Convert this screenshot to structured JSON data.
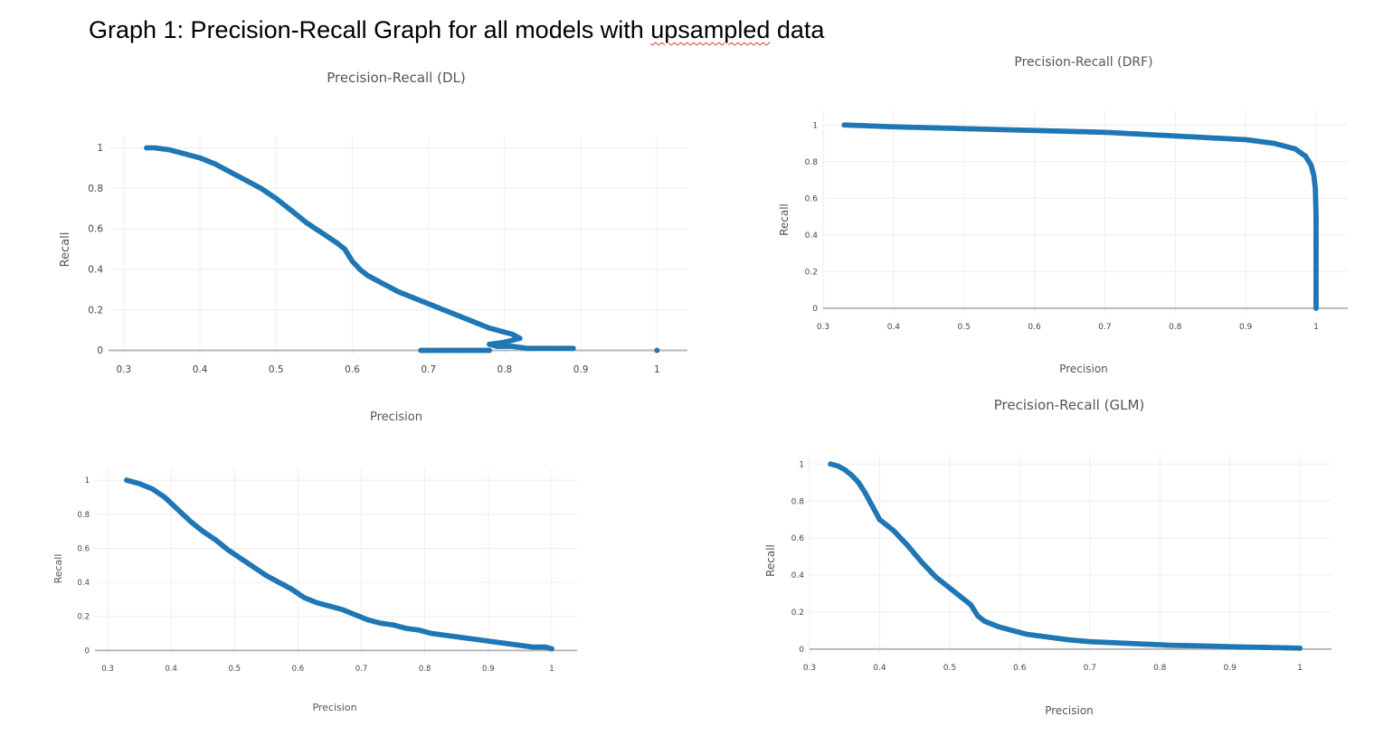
{
  "page": {
    "title_prefix": "Graph 1: Precision-Recall Graph for all models with ",
    "title_misspelled": "upsampled",
    "title_suffix": " data"
  },
  "colors": {
    "marker": "#1f77b4",
    "grid": "#eeeeee",
    "zero_line": "#b8b8b8"
  },
  "chart_data": [
    {
      "type": "scatter",
      "title": "Precision-Recall (DL)",
      "xlabel": "Precision",
      "ylabel": "Recall",
      "xlim": [
        0.28,
        1.04
      ],
      "ylim": [
        -0.02,
        1.06
      ],
      "xticks": [
        0.3,
        0.4,
        0.5,
        0.6,
        0.7,
        0.8,
        0.9,
        1
      ],
      "xtick_labels": [
        "0.3",
        "0.4",
        "0.5",
        "0.6",
        "0.7",
        "0.8",
        "0.9",
        "1"
      ],
      "yticks": [
        0,
        0.2,
        0.4,
        0.6,
        0.8,
        1
      ],
      "ytick_labels": [
        "0",
        "0.2",
        "0.4",
        "0.6",
        "0.8",
        "1"
      ],
      "x": [
        0.33,
        0.34,
        0.36,
        0.38,
        0.4,
        0.42,
        0.44,
        0.46,
        0.48,
        0.5,
        0.52,
        0.54,
        0.56,
        0.58,
        0.59,
        0.6,
        0.61,
        0.62,
        0.64,
        0.66,
        0.68,
        0.7,
        0.72,
        0.74,
        0.76,
        0.78,
        0.8,
        0.81,
        0.82,
        0.8,
        0.78,
        0.79,
        0.81,
        0.83,
        0.85,
        0.87,
        0.89,
        0.69,
        0.715,
        0.78,
        1.0
      ],
      "y": [
        1.0,
        1.0,
        0.99,
        0.97,
        0.95,
        0.92,
        0.88,
        0.84,
        0.8,
        0.75,
        0.69,
        0.63,
        0.58,
        0.53,
        0.5,
        0.44,
        0.4,
        0.37,
        0.33,
        0.29,
        0.26,
        0.23,
        0.2,
        0.17,
        0.14,
        0.11,
        0.09,
        0.08,
        0.06,
        0.04,
        0.03,
        0.02,
        0.02,
        0.01,
        0.01,
        0.01,
        0.01,
        0.0,
        0.0,
        0.0,
        0.0
      ],
      "breaks": [
        37
      ]
    },
    {
      "type": "scatter",
      "title": "Precision-Recall (DRF)",
      "xlabel": "Precision",
      "ylabel": "Recall",
      "xlim": [
        0.3,
        1.045
      ],
      "ylim": [
        -0.03,
        1.08
      ],
      "xticks": [
        0.3,
        0.4,
        0.5,
        0.6,
        0.7,
        0.8,
        0.9,
        1
      ],
      "xtick_labels": [
        "0.3",
        "0.4",
        "0.5",
        "0.6",
        "0.7",
        "0.8",
        "0.9",
        "1"
      ],
      "yticks": [
        0,
        0.2,
        0.4,
        0.6,
        0.8,
        1
      ],
      "ytick_labels": [
        "0",
        "0.2",
        "0.4",
        "0.6",
        "0.8",
        "1"
      ],
      "x": [
        0.33,
        0.4,
        0.5,
        0.6,
        0.7,
        0.8,
        0.9,
        0.94,
        0.97,
        0.985,
        0.993,
        0.997,
        0.999,
        1.0,
        1.0,
        1.0,
        1.0
      ],
      "y": [
        1.0,
        0.99,
        0.98,
        0.97,
        0.96,
        0.94,
        0.92,
        0.9,
        0.87,
        0.83,
        0.78,
        0.72,
        0.65,
        0.5,
        0.3,
        0.1,
        0.0
      ],
      "breaks": []
    },
    {
      "type": "scatter",
      "title": "",
      "xlabel": "Precision",
      "ylabel": "Recall",
      "xlim": [
        0.28,
        1.04
      ],
      "ylim": [
        -0.03,
        1.07
      ],
      "xticks": [
        0.3,
        0.4,
        0.5,
        0.6,
        0.7,
        0.8,
        0.9,
        1
      ],
      "xtick_labels": [
        "0.3",
        "0.4",
        "0.5",
        "0.6",
        "0.7",
        "0.8",
        "0.9",
        "1"
      ],
      "yticks": [
        0,
        0.2,
        0.4,
        0.6,
        0.8,
        1
      ],
      "ytick_labels": [
        "0",
        "0.2",
        "0.4",
        "0.6",
        "0.8",
        "1"
      ],
      "x": [
        0.33,
        0.35,
        0.37,
        0.39,
        0.41,
        0.43,
        0.45,
        0.47,
        0.49,
        0.51,
        0.53,
        0.55,
        0.57,
        0.59,
        0.61,
        0.63,
        0.65,
        0.67,
        0.69,
        0.71,
        0.73,
        0.75,
        0.77,
        0.79,
        0.81,
        0.83,
        0.85,
        0.87,
        0.89,
        0.91,
        0.93,
        0.95,
        0.97,
        0.99,
        1.0
      ],
      "y": [
        1.0,
        0.98,
        0.95,
        0.9,
        0.83,
        0.76,
        0.7,
        0.65,
        0.59,
        0.54,
        0.49,
        0.44,
        0.4,
        0.36,
        0.31,
        0.28,
        0.26,
        0.24,
        0.21,
        0.18,
        0.16,
        0.15,
        0.13,
        0.12,
        0.1,
        0.09,
        0.08,
        0.07,
        0.06,
        0.05,
        0.04,
        0.03,
        0.02,
        0.02,
        0.01
      ],
      "breaks": []
    },
    {
      "type": "scatter",
      "title": "Precision-Recall (GLM)",
      "xlabel": "Precision",
      "ylabel": "Recall",
      "xlim": [
        0.3,
        1.045
      ],
      "ylim": [
        -0.03,
        1.05
      ],
      "xticks": [
        0.3,
        0.4,
        0.5,
        0.6,
        0.7,
        0.8,
        0.9,
        1
      ],
      "xtick_labels": [
        "0.3",
        "0.4",
        "0.5",
        "0.6",
        "0.7",
        "0.8",
        "0.9",
        "1"
      ],
      "yticks": [
        0,
        0.2,
        0.4,
        0.6,
        0.8,
        1
      ],
      "ytick_labels": [
        "0",
        "0.2",
        "0.4",
        "0.6",
        "0.8",
        "1"
      ],
      "x": [
        0.33,
        0.34,
        0.35,
        0.36,
        0.37,
        0.38,
        0.39,
        0.4,
        0.42,
        0.44,
        0.46,
        0.48,
        0.5,
        0.52,
        0.53,
        0.54,
        0.55,
        0.57,
        0.59,
        0.61,
        0.63,
        0.65,
        0.67,
        0.7,
        0.73,
        0.76,
        0.79,
        0.82,
        0.85,
        0.88,
        0.91,
        0.94,
        1.0
      ],
      "y": [
        1.0,
        0.99,
        0.97,
        0.94,
        0.9,
        0.84,
        0.77,
        0.7,
        0.64,
        0.56,
        0.47,
        0.39,
        0.33,
        0.27,
        0.24,
        0.18,
        0.15,
        0.12,
        0.1,
        0.08,
        0.07,
        0.06,
        0.05,
        0.04,
        0.035,
        0.03,
        0.025,
        0.02,
        0.018,
        0.015,
        0.012,
        0.01,
        0.005
      ],
      "breaks": []
    }
  ]
}
